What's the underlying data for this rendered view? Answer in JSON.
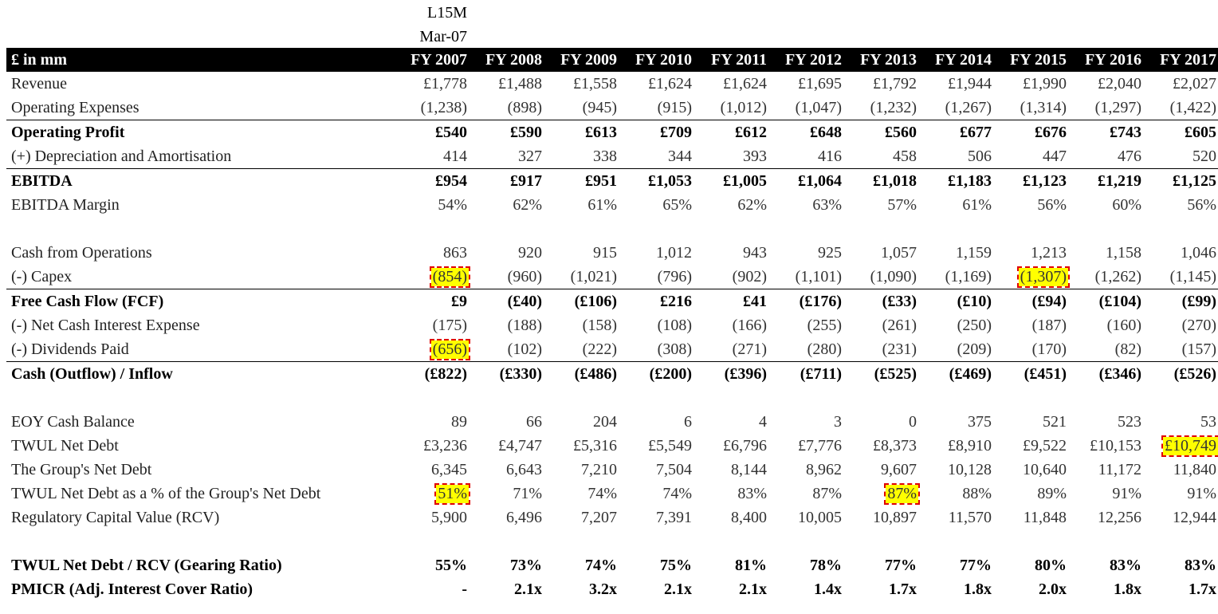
{
  "preheader": {
    "line1": "L15M",
    "line2": "Mar-07"
  },
  "header": {
    "label": "£ in mm",
    "years": [
      "FY 2007",
      "FY 2008",
      "FY 2009",
      "FY 2010",
      "FY 2011",
      "FY 2012",
      "FY 2013",
      "FY 2014",
      "FY 2015",
      "FY 2016",
      "FY 2017"
    ]
  },
  "rows": [
    {
      "id": "revenue",
      "label": "Revenue",
      "values": [
        "£1,778",
        "£1,488",
        "£1,558",
        "£1,624",
        "£1,624",
        "£1,695",
        "£1,792",
        "£1,944",
        "£1,990",
        "£2,040",
        "£2,027"
      ]
    },
    {
      "id": "opex",
      "label": "Operating Expenses",
      "values": [
        "(1,238)",
        "(898)",
        "(945)",
        "(915)",
        "(1,012)",
        "(1,047)",
        "(1,232)",
        "(1,267)",
        "(1,314)",
        "(1,297)",
        "(1,422)"
      ]
    },
    {
      "id": "op-profit",
      "label": "Operating Profit",
      "values": [
        "£540",
        "£590",
        "£613",
        "£709",
        "£612",
        "£648",
        "£560",
        "£677",
        "£676",
        "£743",
        "£605"
      ]
    },
    {
      "id": "da",
      "label": "(+) Depreciation and Amortisation",
      "values": [
        "414",
        "327",
        "338",
        "344",
        "393",
        "416",
        "458",
        "506",
        "447",
        "476",
        "520"
      ]
    },
    {
      "id": "ebitda",
      "label": "EBITDA",
      "values": [
        "£954",
        "£917",
        "£951",
        "£1,053",
        "£1,005",
        "£1,064",
        "£1,018",
        "£1,183",
        "£1,123",
        "£1,219",
        "£1,125"
      ]
    },
    {
      "id": "ebitda-margin",
      "label": "EBITDA Margin",
      "values": [
        "54%",
        "62%",
        "61%",
        "65%",
        "62%",
        "63%",
        "57%",
        "61%",
        "56%",
        "60%",
        "56%"
      ]
    },
    {
      "id": "cfo",
      "label": "Cash from Operations",
      "values": [
        "863",
        "920",
        "915",
        "1,012",
        "943",
        "925",
        "1,057",
        "1,159",
        "1,213",
        "1,158",
        "1,046"
      ]
    },
    {
      "id": "capex",
      "label": "(-) Capex",
      "values": [
        "(854)",
        "(960)",
        "(1,021)",
        "(796)",
        "(902)",
        "(1,101)",
        "(1,090)",
        "(1,169)",
        "(1,307)",
        "(1,262)",
        "(1,145)"
      ]
    },
    {
      "id": "fcf",
      "label": "Free Cash Flow (FCF)",
      "values": [
        "£9",
        "(£40)",
        "(£106)",
        "£216",
        "£41",
        "(£176)",
        "(£33)",
        "(£10)",
        "(£94)",
        "(£104)",
        "(£99)"
      ]
    },
    {
      "id": "interest",
      "label": "(-) Net Cash Interest Expense",
      "values": [
        "(175)",
        "(188)",
        "(158)",
        "(108)",
        "(166)",
        "(255)",
        "(261)",
        "(250)",
        "(187)",
        "(160)",
        "(270)"
      ]
    },
    {
      "id": "dividends",
      "label": "(-) Dividends Paid",
      "values": [
        "(656)",
        "(102)",
        "(222)",
        "(308)",
        "(271)",
        "(280)",
        "(231)",
        "(209)",
        "(170)",
        "(82)",
        "(157)"
      ]
    },
    {
      "id": "cash-flow",
      "label": "Cash (Outflow) / Inflow",
      "values": [
        "(£822)",
        "(£330)",
        "(£486)",
        "(£200)",
        "(£396)",
        "(£711)",
        "(£525)",
        "(£469)",
        "(£451)",
        "(£346)",
        "(£526)"
      ]
    },
    {
      "id": "eoy-cash",
      "label": "EOY Cash Balance",
      "values": [
        "89",
        "66",
        "204",
        "6",
        "4",
        "3",
        "0",
        "375",
        "521",
        "523",
        "53"
      ]
    },
    {
      "id": "twul-debt",
      "label": "TWUL Net Debt",
      "values": [
        "£3,236",
        "£4,747",
        "£5,316",
        "£5,549",
        "£6,796",
        "£7,776",
        "£8,373",
        "£8,910",
        "£9,522",
        "£10,153",
        "£10,749"
      ]
    },
    {
      "id": "group-debt",
      "label": "The Group's Net Debt",
      "values": [
        "6,345",
        "6,643",
        "7,210",
        "7,504",
        "8,144",
        "8,962",
        "9,607",
        "10,128",
        "10,640",
        "11,172",
        "11,840"
      ]
    },
    {
      "id": "twul-pct",
      "label": "TWUL Net Debt as a % of the Group's Net Debt",
      "values": [
        "51%",
        "71%",
        "74%",
        "74%",
        "83%",
        "87%",
        "87%",
        "88%",
        "89%",
        "91%",
        "91%"
      ]
    },
    {
      "id": "rcv",
      "label": "Regulatory Capital Value (RCV)",
      "values": [
        "5,900",
        "6,496",
        "7,207",
        "7,391",
        "8,400",
        "10,005",
        "10,897",
        "11,570",
        "11,848",
        "12,256",
        "12,944"
      ]
    },
    {
      "id": "gearing",
      "label": "TWUL Net Debt / RCV (Gearing Ratio)",
      "values": [
        "55%",
        "73%",
        "74%",
        "75%",
        "81%",
        "78%",
        "77%",
        "77%",
        "80%",
        "83%",
        "83%"
      ]
    },
    {
      "id": "pmicr",
      "label": "PMICR (Adj. Interest Cover Ratio)",
      "values": [
        "-",
        "2.1x",
        "3.2x",
        "2.1x",
        "2.1x",
        "1.4x",
        "1.7x",
        "1.8x",
        "2.0x",
        "1.8x",
        "1.7x"
      ]
    }
  ],
  "highlight_color": "#ffff00",
  "highlight_border_color": "#e00000",
  "header_bg_color": "#000000"
}
